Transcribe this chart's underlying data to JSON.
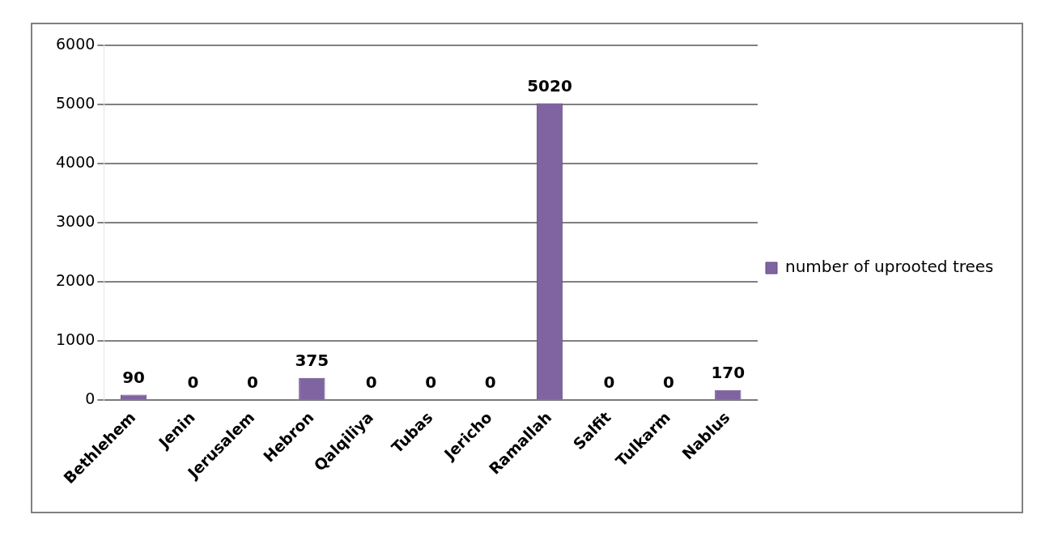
{
  "chart_data": {
    "type": "bar",
    "categories": [
      "Bethlehem",
      "Jenin",
      "Jerusalem",
      "Hebron",
      "Qalqiliya",
      "Tubas",
      "Jericho",
      "Ramallah",
      "Salfit",
      "Tulkarm",
      "Nablus"
    ],
    "series": [
      {
        "name": "number of uprooted trees",
        "color": "#8064a2",
        "values": [
          90,
          0,
          0,
          375,
          0,
          0,
          0,
          5020,
          0,
          0,
          170
        ]
      }
    ],
    "ylim": [
      0,
      6000
    ],
    "yticks": [
      0,
      1000,
      2000,
      3000,
      4000,
      5000,
      6000
    ],
    "grid": "y",
    "legend": "right",
    "data_labels": true
  }
}
